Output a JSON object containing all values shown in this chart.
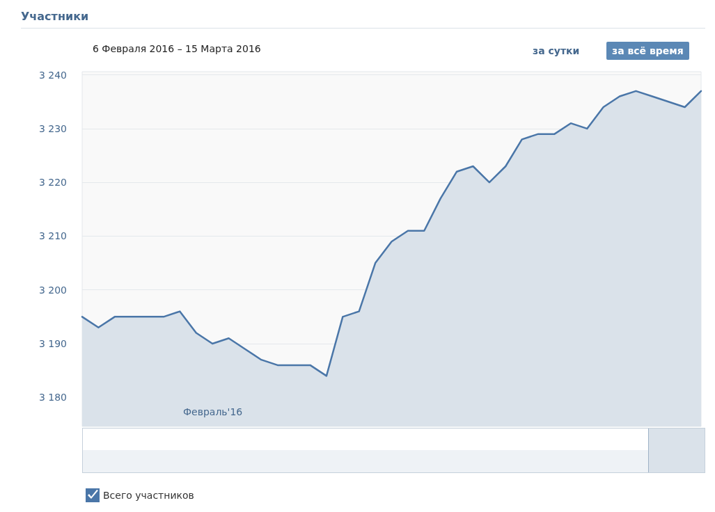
{
  "chart_data": {
    "type": "area",
    "title": "Участники",
    "subtitle": "6 Февраля 2016 – 15 Марта 2016",
    "categories": [
      null,
      null,
      null,
      null,
      null,
      null,
      null,
      null,
      null,
      null,
      null,
      null,
      null,
      null,
      null,
      null,
      null,
      null,
      null,
      null,
      null,
      null,
      null,
      null,
      null,
      null,
      null,
      null,
      null,
      null,
      null,
      null,
      null,
      null,
      null,
      null,
      null,
      null,
      null
    ],
    "series": [
      {
        "name": "Всего участников",
        "color": "#4a76a8",
        "values": [
          3195,
          3193,
          3195,
          3195,
          3195,
          3195,
          3196,
          3192,
          3190,
          3191,
          3189,
          3187,
          3186,
          3186,
          3186,
          3184,
          3195,
          3196,
          3205,
          3209,
          3211,
          3211,
          3217,
          3222,
          3223,
          3220,
          3223,
          3228,
          3229,
          3229,
          3231,
          3230,
          3234,
          3236,
          3237,
          3236,
          3235,
          3234,
          3237
        ]
      }
    ],
    "ylim": [
      3174.6,
      3240.6
    ],
    "yticks": [
      {
        "value": 3180,
        "label": "3 180"
      },
      {
        "value": 3190,
        "label": "3 190"
      },
      {
        "value": 3200,
        "label": "3 200"
      },
      {
        "value": 3210,
        "label": "3 210"
      },
      {
        "value": 3220,
        "label": "3 220"
      },
      {
        "value": 3230,
        "label": "3 230"
      },
      {
        "value": 3240,
        "label": "3 240"
      }
    ],
    "grid": true,
    "legend": "bottom left",
    "marker": "none",
    "line_style": "solid",
    "tick_labels": "y",
    "annotations": [
      "Февраль'16",
      "за сутки",
      "за всё время"
    ]
  }
}
